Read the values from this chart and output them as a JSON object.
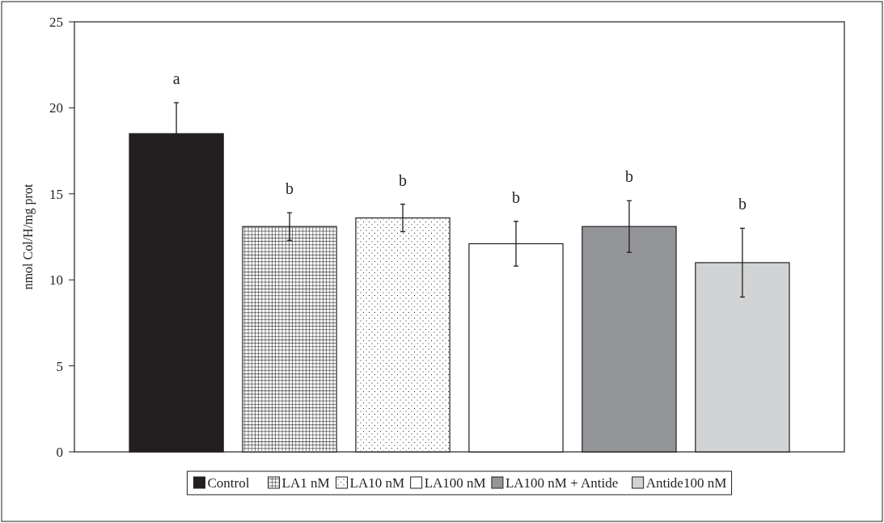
{
  "chart_data": {
    "type": "bar",
    "ylabel": "nmol Col/H/mg prot",
    "categories": [
      null
    ],
    "series": [
      {
        "name": "Control",
        "color": "#231f20",
        "values": [
          18.5
        ],
        "errors": [
          1.8
        ]
      },
      {
        "name": "LA1 nM",
        "color": "#ffffff",
        "values": [
          13.1
        ],
        "errors": [
          0.8
        ]
      },
      {
        "name": "LA10 nM",
        "color": "#ffffff",
        "values": [
          13.6
        ],
        "errors": [
          0.8
        ]
      },
      {
        "name": "LA100 nM",
        "color": "#ffffff",
        "values": [
          12.1
        ],
        "errors": [
          1.3
        ]
      },
      {
        "name": "LA100 nM + Antide",
        "color": "#939598",
        "values": [
          13.1
        ],
        "errors": [
          1.5
        ]
      },
      {
        "name": "Antide100 nM",
        "color": "#d1d3d4",
        "values": [
          11.0
        ],
        "errors": [
          2.0
        ]
      }
    ],
    "ylim": [
      0,
      25
    ],
    "yticks": [
      0,
      5,
      10,
      15,
      20,
      25
    ],
    "tick_labels": "y",
    "legend": "bottom",
    "annotations": [
      "a",
      "b",
      "b",
      "b",
      "b",
      "b"
    ]
  }
}
